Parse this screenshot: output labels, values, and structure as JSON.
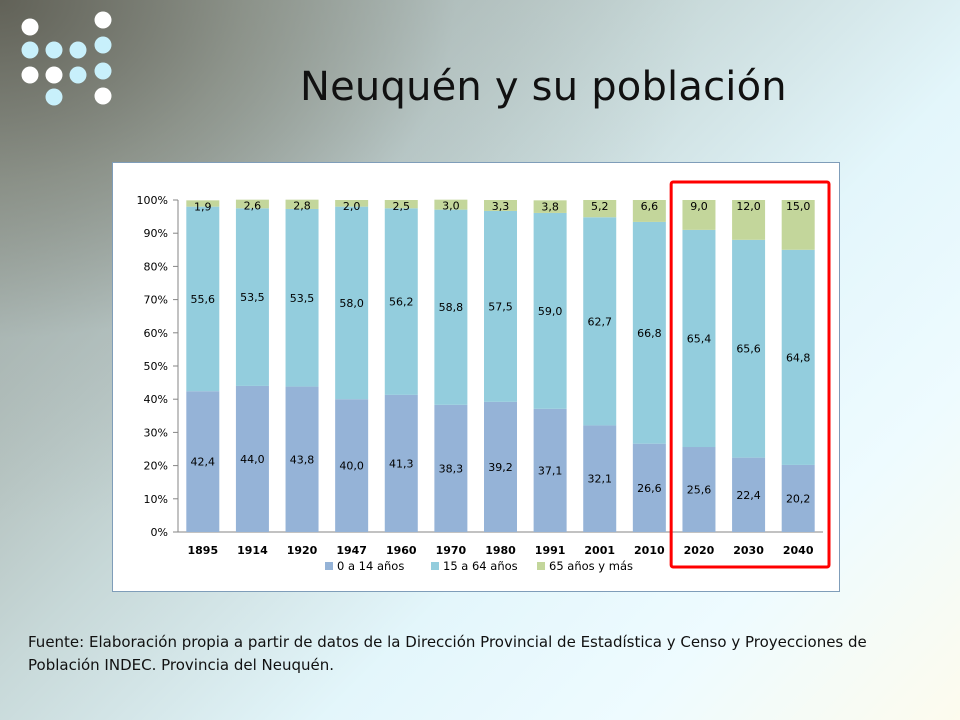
{
  "slide": {
    "title": "Neuquén y su población",
    "source": "Fuente: Elaboración propia a partir de datos de la Dirección Provincial de Estadística y Censo y Proyecciones de Población INDEC. Provincia del Neuquén."
  },
  "logo": {
    "icon": "dot-grid-logo-icon",
    "colors": [
      "#ffffff",
      "#c8f0fb"
    ]
  },
  "colors": {
    "series_0_14": "#95b3d7",
    "series_15_64": "#93cddd",
    "series_65": "#c3d69b",
    "highlight": "#ff0000",
    "frame_border": "#7f9db9"
  },
  "chart_data": {
    "type": "bar",
    "stacked": true,
    "percent_stacked": true,
    "title": "",
    "xlabel": "",
    "ylabel": "",
    "ylim": [
      0,
      100
    ],
    "y_ticks": [
      "0%",
      "10%",
      "20%",
      "30%",
      "40%",
      "50%",
      "60%",
      "70%",
      "80%",
      "90%",
      "100%"
    ],
    "categories": [
      "1895",
      "1914",
      "1920",
      "1947",
      "1960",
      "1970",
      "1980",
      "1991",
      "2001",
      "2010",
      "2020",
      "2030",
      "2040"
    ],
    "series": [
      {
        "name": "0 a 14 años",
        "values": [
          42.4,
          44.0,
          43.8,
          40.0,
          41.3,
          38.3,
          39.2,
          37.1,
          32.1,
          26.6,
          25.6,
          22.4,
          20.2
        ],
        "labels": [
          "42,4",
          "44,0",
          "43,8",
          "40,0",
          "41,3",
          "38,3",
          "39,2",
          "37,1",
          "32,1",
          "26,6",
          "25,6",
          "22,4",
          "20,2"
        ]
      },
      {
        "name": "15 a 64 años",
        "values": [
          55.6,
          53.5,
          53.5,
          58.0,
          56.2,
          58.8,
          57.5,
          59.0,
          62.7,
          66.8,
          65.4,
          65.6,
          64.8
        ],
        "labels": [
          "55,6",
          "53,5",
          "53,5",
          "58,0",
          "56,2",
          "58,8",
          "57,5",
          "59,0",
          "62,7",
          "66,8",
          "65,4",
          "65,6",
          "64,8"
        ]
      },
      {
        "name": "65 años y más",
        "values": [
          1.9,
          2.6,
          2.8,
          2.0,
          2.5,
          3.0,
          3.3,
          3.8,
          5.2,
          6.6,
          9.0,
          12.0,
          15.0
        ],
        "labels": [
          "1,9",
          "2,6",
          "2,8",
          "2,0",
          "2,5",
          "3,0",
          "3,3",
          "3,8",
          "5,2",
          "6,6",
          "9,0",
          "12,0",
          "15,0"
        ]
      }
    ],
    "grid": false,
    "legend_position": "bottom",
    "highlighted_categories": [
      "2020",
      "2030",
      "2040"
    ]
  }
}
